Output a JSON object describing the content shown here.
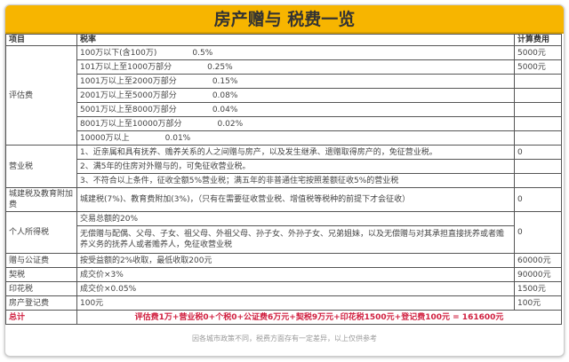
{
  "title": "房产赠与 税费一览",
  "headers": [
    "项目",
    "税率",
    "计算费用"
  ],
  "evaluation": {
    "item": "评估费",
    "rows": [
      {
        "range": "100万以下(含100万)",
        "rate": "0.5%",
        "fee": "5000元"
      },
      {
        "range": "101万以上至1000万部分",
        "rate": "0.25%",
        "fee": "5000元"
      },
      {
        "range": "1001万以上至2000万部分",
        "rate": "0.15%",
        "fee": ""
      },
      {
        "range": "2001万以上至5000万部分",
        "rate": "0.08%",
        "fee": ""
      },
      {
        "range": "5001万以上至8000万部分",
        "rate": "0.04%",
        "fee": ""
      },
      {
        "range": "8001万以上至10000万部分",
        "rate": "0.02%",
        "fee": ""
      },
      {
        "range": "10000万以上",
        "rate": "0.01%",
        "fee": ""
      }
    ]
  },
  "business_tax": {
    "item": "营业税",
    "rows": [
      "1、近亲属和具有抚养、赡养关系的人之间赠与房产，以及发生继承、遗赠取得房产的，免征营业税。",
      "2、满5年的住房对外赠与的，可免征收营业税。",
      "3、不符合以上条件，征收全额5%营业税；满五年的非普通住宅按照差额征收5%的营业税"
    ],
    "fee": "0"
  },
  "city_tax": {
    "item": "城建税及教育附加费",
    "rate": "城建税(7%)、教育费附加(3%)，（只有在需要征收营业税、增值税等税种的前提下才会征收）",
    "fee": "0"
  },
  "income_tax": {
    "item": "个人所得税",
    "rows": [
      "交易总额的20%",
      "无偿赠与配偶、父母、子女、祖父母、外祖父母、孙子女、外孙子女、兄弟姐妹，以及无偿赠与对其承担直接抚养或者赡养义务的抚养人或者赡养人，免征收营业税"
    ],
    "fee": "0"
  },
  "others": [
    {
      "item": "赠与公证费",
      "rate": "按受益额的2%收取，最低收取200元",
      "fee": "60000元"
    },
    {
      "item": "契税",
      "rate": "成交价×3%",
      "fee": "90000元"
    },
    {
      "item": "印花税",
      "rate": "成交价×0.05%",
      "fee": "1500元"
    },
    {
      "item": "房产登记费",
      "rate": "100元",
      "fee": "100元"
    }
  ],
  "total": {
    "label": "总计",
    "formula": "评估费1万+营业税0+个税0+公证费6万元+契税9万元+印花税1500元+登记费100元 = 161600元"
  },
  "footer": "因各城市政策不同，税费方面存有一定差异，以上仅供参考"
}
